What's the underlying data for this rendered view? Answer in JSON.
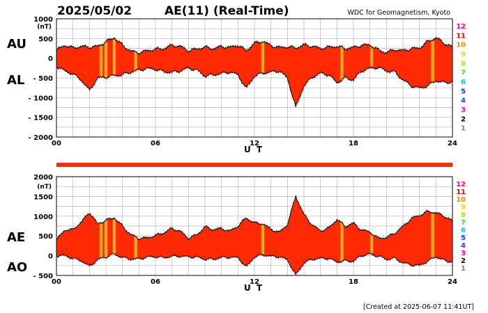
{
  "header": {
    "date": "2025/05/02",
    "title": "AE(11) (Real-Time)",
    "credit": "WDC for Geomagnetism, Kyoto"
  },
  "footer": {
    "created": "[Created at 2025-06-07 11:41UT]"
  },
  "colors": {
    "fill": "#ff2a00",
    "highlight": "#f5a623",
    "line": "#000000",
    "grid": "#b4b4b4",
    "legend": [
      "#aaaaaa",
      "#808080",
      "#000000",
      "#dd00dd",
      "#3333ff",
      "#1f3bff",
      "#00c8e0",
      "#33dd33",
      "#aaee00",
      "#ffcc00",
      "#ee8800",
      "#ee0000",
      "#ff0088"
    ]
  },
  "legend_levels": [
    "1",
    "2",
    "3",
    "4",
    "5",
    "6",
    "7",
    "8",
    "9",
    "10",
    "11",
    "12"
  ],
  "chart_data": [
    {
      "type": "area",
      "upper_label": "AU",
      "lower_label": "AL",
      "unit": "(nT)",
      "xlabel": "U T",
      "xticks": [
        "00",
        "06",
        "12",
        "18",
        "24"
      ],
      "xlim": [
        0,
        24
      ],
      "ylim": [
        -2000,
        1000
      ],
      "yticks": [
        -2000,
        -1500,
        -1000,
        -500,
        0,
        500,
        1000
      ],
      "grid": true,
      "highlight_hours": [
        2.7,
        3.0,
        3.5,
        4.8,
        12.5,
        17.3,
        19.1,
        22.8
      ],
      "x": [
        0,
        0.5,
        1,
        1.5,
        2,
        2.5,
        3,
        3.5,
        4,
        4.5,
        5,
        5.5,
        6,
        6.5,
        7,
        7.5,
        8,
        8.5,
        9,
        9.5,
        10,
        10.5,
        11,
        11.5,
        12,
        12.5,
        13,
        13.5,
        14,
        14.5,
        15,
        15.5,
        16,
        16.5,
        17,
        17.5,
        18,
        18.5,
        19,
        19.5,
        20,
        20.5,
        21,
        21.5,
        22,
        22.5,
        23,
        23.5,
        24
      ],
      "series": [
        {
          "name": "AU",
          "values": [
            200,
            330,
            260,
            300,
            280,
            300,
            420,
            520,
            330,
            180,
            140,
            190,
            230,
            240,
            330,
            300,
            190,
            230,
            280,
            240,
            300,
            270,
            330,
            190,
            380,
            430,
            320,
            270,
            290,
            260,
            340,
            300,
            250,
            280,
            300,
            240,
            270,
            330,
            340,
            210,
            140,
            220,
            190,
            240,
            260,
            420,
            520,
            380,
            280
          ]
        },
        {
          "name": "AL",
          "values": [
            -200,
            -320,
            -400,
            -550,
            -820,
            -500,
            -480,
            -440,
            -420,
            -350,
            -300,
            -260,
            -280,
            -340,
            -360,
            -320,
            -250,
            -300,
            -450,
            -420,
            -390,
            -350,
            -420,
            -770,
            -450,
            -380,
            -350,
            -320,
            -500,
            -1250,
            -700,
            -480,
            -380,
            -420,
            -620,
            -500,
            -550,
            -320,
            -260,
            -230,
            -320,
            -350,
            -550,
            -700,
            -760,
            -700,
            -570,
            -620,
            -600
          ]
        }
      ]
    },
    {
      "type": "area",
      "upper_label": "AE",
      "lower_label": "AO",
      "unit": "(nT)",
      "xlabel": "U T",
      "xticks": [
        "00",
        "06",
        "12",
        "18",
        "24"
      ],
      "xlim": [
        0,
        24
      ],
      "ylim": [
        -500,
        2000
      ],
      "yticks": [
        -500,
        0,
        500,
        1000,
        1500,
        2000
      ],
      "grid": true,
      "highlight_hours": [
        2.7,
        3.0,
        3.5,
        4.8,
        12.5,
        17.3,
        19.1,
        22.8
      ],
      "x": [
        0,
        0.5,
        1,
        1.5,
        2,
        2.5,
        3,
        3.5,
        4,
        4.5,
        5,
        5.5,
        6,
        6.5,
        7,
        7.5,
        8,
        8.5,
        9,
        9.5,
        10,
        10.5,
        11,
        11.5,
        12,
        12.5,
        13,
        13.5,
        14,
        14.5,
        15,
        15.5,
        16,
        16.5,
        17,
        17.5,
        18,
        18.5,
        19,
        19.5,
        20,
        20.5,
        21,
        21.5,
        22,
        22.5,
        23,
        23.5,
        24
      ],
      "series": [
        {
          "name": "AE",
          "values": [
            400,
            650,
            660,
            850,
            1100,
            800,
            900,
            960,
            750,
            530,
            440,
            450,
            510,
            580,
            690,
            620,
            440,
            530,
            730,
            660,
            690,
            620,
            750,
            960,
            830,
            810,
            670,
            590,
            790,
            1510,
            1040,
            780,
            630,
            700,
            920,
            740,
            820,
            650,
            600,
            440,
            460,
            570,
            740,
            940,
            1020,
            1120,
            1090,
            1000,
            880
          ]
        },
        {
          "name": "AO",
          "values": [
            0,
            5,
            -70,
            -125,
            -270,
            -100,
            -30,
            40,
            -45,
            -85,
            -80,
            -35,
            -25,
            -50,
            -15,
            -10,
            -30,
            -35,
            -85,
            -90,
            -45,
            -40,
            -45,
            -290,
            -35,
            25,
            -15,
            -25,
            -105,
            -495,
            -180,
            -90,
            -65,
            -70,
            -160,
            -130,
            -140,
            5,
            40,
            -10,
            -90,
            -65,
            -180,
            -230,
            -250,
            -140,
            -25,
            -120,
            -160
          ]
        }
      ]
    }
  ]
}
